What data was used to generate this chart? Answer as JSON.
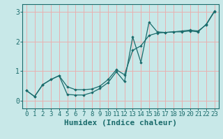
{
  "xlabel": "Humidex (Indice chaleur)",
  "bg_color": "#c8e8e8",
  "line_color": "#1a6b6b",
  "grid_color": "#e8b0b0",
  "xlim": [
    -0.5,
    23.5
  ],
  "ylim": [
    -0.25,
    3.25
  ],
  "xticks": [
    0,
    1,
    2,
    3,
    4,
    5,
    6,
    7,
    8,
    9,
    10,
    11,
    12,
    13,
    14,
    15,
    16,
    17,
    18,
    19,
    20,
    21,
    22,
    23
  ],
  "yticks": [
    0,
    1,
    2,
    3
  ],
  "line1_x": [
    0,
    1,
    2,
    3,
    4,
    5,
    6,
    7,
    8,
    9,
    10,
    11,
    12,
    13,
    14,
    15,
    16,
    17,
    18,
    19,
    20,
    21,
    22,
    23
  ],
  "line1_y": [
    0.35,
    0.15,
    0.55,
    0.72,
    0.85,
    0.22,
    0.2,
    0.2,
    0.28,
    0.42,
    0.62,
    0.98,
    0.65,
    2.15,
    1.3,
    2.65,
    2.32,
    2.3,
    2.32,
    2.32,
    2.35,
    2.32,
    2.58,
    3.02
  ],
  "line2_x": [
    0,
    1,
    2,
    3,
    4,
    5,
    6,
    7,
    8,
    9,
    10,
    11,
    12,
    13,
    14,
    15,
    16,
    17,
    18,
    19,
    20,
    21,
    22,
    23
  ],
  "line2_y": [
    0.35,
    0.15,
    0.55,
    0.72,
    0.85,
    0.48,
    0.38,
    0.38,
    0.4,
    0.5,
    0.72,
    1.05,
    0.88,
    1.7,
    1.85,
    2.2,
    2.28,
    2.3,
    2.32,
    2.35,
    2.38,
    2.35,
    2.56,
    3.0
  ],
  "xlabel_fontsize": 8,
  "tick_fontsize": 6.5
}
